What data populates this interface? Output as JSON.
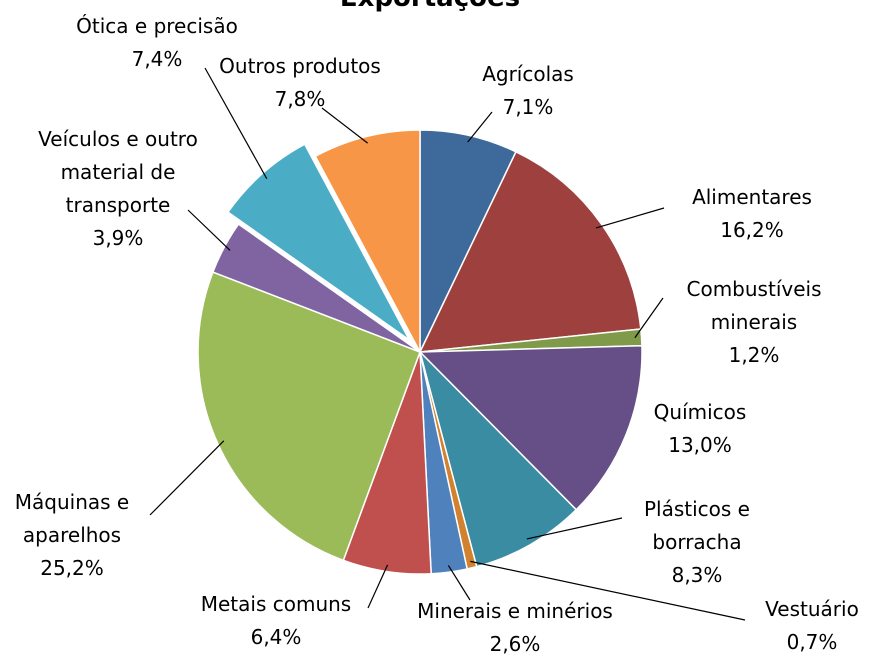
{
  "chart_data": {
    "type": "pie",
    "title": "Exportações",
    "categories": [
      "Agrícolas",
      "Alimentares",
      "Combustíveis minerais",
      "Químicos",
      "Plásticos e borracha",
      "Vestuário",
      "Minerais e minérios",
      "Metais comuns",
      "Máquinas e aparelhos",
      "Veículos e outro material de transporte",
      "Ótica e precisão",
      "Outros produtos"
    ],
    "values": [
      7.1,
      16.2,
      1.2,
      13.0,
      8.3,
      0.7,
      2.6,
      6.4,
      25.2,
      3.9,
      7.4,
      7.8
    ],
    "value_labels": [
      "7,1%",
      "16,2%",
      "1,2%",
      "13,0%",
      "8,3%",
      "0,7%",
      "2,6%",
      "6,4%",
      "25,2%",
      "3,9%",
      "7,4%",
      "7,8%"
    ],
    "colors": [
      "#3d6a9b",
      "#9e413e",
      "#7f9a48",
      "#664f86",
      "#3a8ca3",
      "#d2812e",
      "#4f81bd",
      "#c0504d",
      "#9bbb59",
      "#8064a2",
      "#4bacc6",
      "#f79646"
    ],
    "exploded": [
      10
    ]
  }
}
